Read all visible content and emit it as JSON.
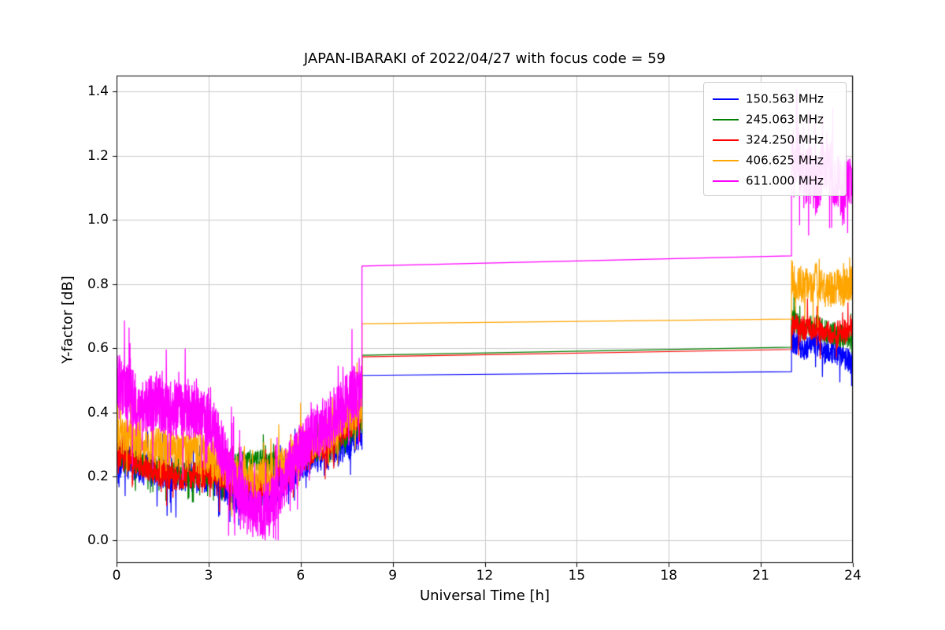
{
  "chart_data": {
    "type": "line",
    "title": "JAPAN-IBARAKI of 2022/04/27 with focus code = 59",
    "xlabel": "Universal Time [h]",
    "ylabel": "Y-factor [dB]",
    "xlim": [
      0,
      24
    ],
    "ylim": [
      -0.07,
      1.45
    ],
    "grid": true,
    "legend_position": "upper right",
    "xticks": {
      "values": [
        0,
        3,
        6,
        9,
        12,
        15,
        18,
        21,
        24
      ],
      "labels": [
        "0",
        "3",
        "6",
        "9",
        "12",
        "15",
        "18",
        "21",
        "24"
      ]
    },
    "yticks": {
      "values": [
        0.0,
        0.2,
        0.4,
        0.6,
        0.8,
        1.0,
        1.2,
        1.4
      ],
      "labels": [
        "0.0",
        "0.2",
        "0.4",
        "0.6",
        "0.8",
        "1.0",
        "1.2",
        "1.4"
      ]
    },
    "series": [
      {
        "name": "150.563 MHz",
        "color": "#0000ff",
        "segments": [
          {
            "kind": "noisy",
            "x0": 0,
            "x1": 8,
            "step": 0.008,
            "amp": 0.07,
            "min": 0.0,
            "anchors": [
              [
                0,
                0.26
              ],
              [
                0.5,
                0.24
              ],
              [
                1,
                0.22
              ],
              [
                1.5,
                0.21
              ],
              [
                2,
                0.2
              ],
              [
                2.5,
                0.2
              ],
              [
                3,
                0.2
              ],
              [
                3.5,
                0.17
              ],
              [
                4,
                0.13
              ],
              [
                4.5,
                0.13
              ],
              [
                5,
                0.15
              ],
              [
                5.5,
                0.19
              ],
              [
                6,
                0.24
              ],
              [
                6.5,
                0.26
              ],
              [
                7,
                0.28
              ],
              [
                7.5,
                0.3
              ],
              [
                8,
                0.33
              ]
            ]
          },
          {
            "kind": "line",
            "points": [
              [
                8,
                0.515
              ],
              [
                22,
                0.527
              ]
            ]
          },
          {
            "kind": "noisy",
            "x0": 22,
            "x1": 24,
            "step": 0.008,
            "amp": 0.05,
            "min": 0.45,
            "anchors": [
              [
                22,
                0.62
              ],
              [
                22.4,
                0.6
              ],
              [
                22.8,
                0.61
              ],
              [
                23.2,
                0.59
              ],
              [
                23.6,
                0.58
              ],
              [
                24,
                0.55
              ]
            ]
          }
        ]
      },
      {
        "name": "245.063 MHz",
        "color": "#008000",
        "segments": [
          {
            "kind": "noisy",
            "x0": 0,
            "x1": 8,
            "step": 0.008,
            "amp": 0.05,
            "min": 0.0,
            "anchors": [
              [
                0,
                0.27
              ],
              [
                0.5,
                0.25
              ],
              [
                1,
                0.23
              ],
              [
                1.5,
                0.22
              ],
              [
                2,
                0.21
              ],
              [
                2.5,
                0.21
              ],
              [
                3,
                0.21
              ],
              [
                3.5,
                0.22
              ],
              [
                4,
                0.24
              ],
              [
                4.5,
                0.25
              ],
              [
                5,
                0.24
              ],
              [
                5.5,
                0.23
              ],
              [
                6,
                0.26
              ],
              [
                6.5,
                0.28
              ],
              [
                7,
                0.3
              ],
              [
                7.5,
                0.33
              ],
              [
                8,
                0.37
              ]
            ]
          },
          {
            "kind": "line",
            "points": [
              [
                8,
                0.578
              ],
              [
                22,
                0.603
              ]
            ]
          },
          {
            "kind": "noisy",
            "x0": 22,
            "x1": 24,
            "step": 0.008,
            "amp": 0.05,
            "min": 0.5,
            "anchors": [
              [
                22,
                0.69
              ],
              [
                22.4,
                0.66
              ],
              [
                22.8,
                0.67
              ],
              [
                23.2,
                0.65
              ],
              [
                23.6,
                0.64
              ],
              [
                24,
                0.63
              ]
            ]
          }
        ]
      },
      {
        "name": "324.250 MHz",
        "color": "#ff0000",
        "segments": [
          {
            "kind": "noisy",
            "x0": 0,
            "x1": 8,
            "step": 0.008,
            "amp": 0.06,
            "min": 0.0,
            "anchors": [
              [
                0,
                0.27
              ],
              [
                0.5,
                0.25
              ],
              [
                1,
                0.23
              ],
              [
                1.5,
                0.21
              ],
              [
                2,
                0.2
              ],
              [
                2.5,
                0.2
              ],
              [
                3,
                0.21
              ],
              [
                3.5,
                0.2
              ],
              [
                4,
                0.18
              ],
              [
                4.5,
                0.17
              ],
              [
                5,
                0.18
              ],
              [
                5.5,
                0.21
              ],
              [
                6,
                0.25
              ],
              [
                6.5,
                0.28
              ],
              [
                7,
                0.31
              ],
              [
                7.5,
                0.35
              ],
              [
                8,
                0.4
              ]
            ]
          },
          {
            "kind": "line",
            "points": [
              [
                8,
                0.573
              ],
              [
                22,
                0.596
              ]
            ]
          },
          {
            "kind": "noisy",
            "x0": 22,
            "x1": 24,
            "step": 0.008,
            "amp": 0.05,
            "min": 0.5,
            "anchors": [
              [
                22,
                0.68
              ],
              [
                22.4,
                0.66
              ],
              [
                22.8,
                0.66
              ],
              [
                23.2,
                0.65
              ],
              [
                23.6,
                0.65
              ],
              [
                24,
                0.66
              ]
            ]
          }
        ]
      },
      {
        "name": "406.625 MHz",
        "color": "#ffa500",
        "segments": [
          {
            "kind": "noisy",
            "x0": 0,
            "x1": 8,
            "step": 0.008,
            "amp": 0.08,
            "min": 0.0,
            "anchors": [
              [
                0,
                0.33
              ],
              [
                0.5,
                0.32
              ],
              [
                1,
                0.3
              ],
              [
                1.5,
                0.29
              ],
              [
                2,
                0.28
              ],
              [
                2.5,
                0.27
              ],
              [
                3,
                0.26
              ],
              [
                3.5,
                0.23
              ],
              [
                4,
                0.2
              ],
              [
                4.5,
                0.19
              ],
              [
                5,
                0.2
              ],
              [
                5.5,
                0.24
              ],
              [
                6,
                0.28
              ],
              [
                6.5,
                0.31
              ],
              [
                7,
                0.34
              ],
              [
                7.5,
                0.38
              ],
              [
                8,
                0.43
              ]
            ]
          },
          {
            "kind": "line",
            "points": [
              [
                8,
                0.676
              ],
              [
                22,
                0.691
              ]
            ]
          },
          {
            "kind": "noisy",
            "x0": 22,
            "x1": 24,
            "step": 0.008,
            "amp": 0.08,
            "min": 0.6,
            "anchors": [
              [
                22,
                0.82
              ],
              [
                22.4,
                0.79
              ],
              [
                22.8,
                0.81
              ],
              [
                23.2,
                0.78
              ],
              [
                23.6,
                0.79
              ],
              [
                24,
                0.8
              ]
            ]
          }
        ]
      },
      {
        "name": "611.000 MHz",
        "color": "#ff00ff",
        "segments": [
          {
            "kind": "noisy",
            "x0": 0,
            "x1": 8,
            "step": 0.006,
            "amp": 0.12,
            "min": 0.0,
            "anchors": [
              [
                0,
                0.5
              ],
              [
                0.3,
                0.47
              ],
              [
                0.6,
                0.44
              ],
              [
                1,
                0.42
              ],
              [
                1.3,
                0.44
              ],
              [
                1.6,
                0.41
              ],
              [
                2,
                0.42
              ],
              [
                2.3,
                0.4
              ],
              [
                2.6,
                0.41
              ],
              [
                3,
                0.37
              ],
              [
                3.3,
                0.32
              ],
              [
                3.6,
                0.24
              ],
              [
                4,
                0.15
              ],
              [
                4.3,
                0.1
              ],
              [
                4.6,
                0.08
              ],
              [
                5,
                0.1
              ],
              [
                5.3,
                0.16
              ],
              [
                5.6,
                0.22
              ],
              [
                6,
                0.28
              ],
              [
                6.4,
                0.33
              ],
              [
                6.8,
                0.36
              ],
              [
                7.2,
                0.4
              ],
              [
                7.6,
                0.44
              ],
              [
                8,
                0.5
              ]
            ]
          },
          {
            "kind": "line",
            "points": [
              [
                8,
                0.856
              ],
              [
                22,
                0.888
              ]
            ]
          },
          {
            "kind": "noisy",
            "x0": 22,
            "x1": 24,
            "step": 0.006,
            "amp": 0.12,
            "min": 0.95,
            "max": 1.41,
            "anchors": [
              [
                22,
                1.18
              ],
              [
                22.2,
                1.22
              ],
              [
                22.4,
                1.12
              ],
              [
                22.6,
                1.16
              ],
              [
                22.8,
                1.1
              ],
              [
                23,
                1.15
              ],
              [
                23.2,
                1.2
              ],
              [
                23.4,
                1.12
              ],
              [
                23.6,
                1.1
              ],
              [
                23.8,
                1.12
              ],
              [
                24,
                1.1
              ]
            ]
          }
        ]
      }
    ]
  },
  "style": {
    "grid_color": "#cccccc",
    "spine_color": "#000000",
    "background": "#ffffff",
    "legend_border": "#cccccc"
  }
}
